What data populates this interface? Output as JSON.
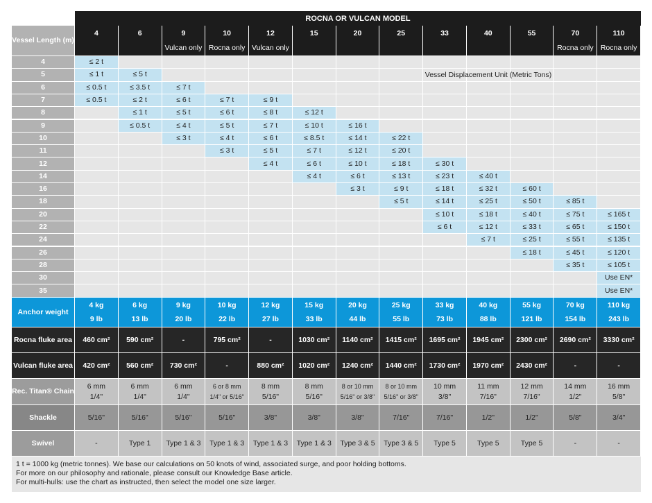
{
  "table": {
    "title": "ROCNA OR VULCAN MODEL",
    "corner_label": "Vessel Length (m)",
    "unit_note": "Vessel Displacement Unit (Metric Tons)",
    "models": [
      {
        "size": "4",
        "note": ""
      },
      {
        "size": "6",
        "note": ""
      },
      {
        "size": "9",
        "note": "Vulcan only"
      },
      {
        "size": "10",
        "note": "Rocna only"
      },
      {
        "size": "12",
        "note": "Vulcan only"
      },
      {
        "size": "15",
        "note": ""
      },
      {
        "size": "20",
        "note": ""
      },
      {
        "size": "25",
        "note": ""
      },
      {
        "size": "33",
        "note": ""
      },
      {
        "size": "40",
        "note": ""
      },
      {
        "size": "55",
        "note": ""
      },
      {
        "size": "70",
        "note": "Rocna only"
      },
      {
        "size": "110",
        "note": "Rocna only"
      }
    ],
    "rows": [
      {
        "length": "4",
        "cells": [
          "≤ 2 t",
          "",
          "",
          "",
          "",
          "",
          "",
          "",
          "",
          "",
          "",
          "",
          ""
        ]
      },
      {
        "length": "5",
        "cells": [
          "≤ 1 t",
          "≤ 5 t",
          "",
          "",
          "",
          "",
          "",
          "",
          "",
          "",
          "",
          "",
          ""
        ]
      },
      {
        "length": "6",
        "cells": [
          "≤ 0.5 t",
          "≤ 3.5 t",
          "≤ 7 t",
          "",
          "",
          "",
          "",
          "",
          "",
          "",
          "",
          "",
          ""
        ]
      },
      {
        "length": "7",
        "cells": [
          "≤ 0.5 t",
          "≤ 2 t",
          "≤ 6 t",
          "≤ 7 t",
          "≤ 9 t",
          "",
          "",
          "",
          "",
          "",
          "",
          "",
          ""
        ]
      },
      {
        "length": "8",
        "cells": [
          "",
          "≤ 1 t",
          "≤ 5 t",
          "≤ 6 t",
          "≤ 8 t",
          "≤ 12 t",
          "",
          "",
          "",
          "",
          "",
          "",
          ""
        ]
      },
      {
        "length": "9",
        "cells": [
          "",
          "≤ 0.5 t",
          "≤ 4 t",
          "≤ 5 t",
          "≤ 7 t",
          "≤ 10 t",
          "≤ 16 t",
          "",
          "",
          "",
          "",
          "",
          ""
        ]
      },
      {
        "length": "10",
        "cells": [
          "",
          "",
          "≤ 3 t",
          "≤ 4 t",
          "≤ 6 t",
          "≤ 8.5 t",
          "≤ 14 t",
          "≤ 22 t",
          "",
          "",
          "",
          "",
          ""
        ]
      },
      {
        "length": "11",
        "cells": [
          "",
          "",
          "",
          "≤ 3 t",
          "≤ 5 t",
          "≤ 7 t",
          "≤ 12 t",
          "≤ 20 t",
          "",
          "",
          "",
          "",
          ""
        ]
      },
      {
        "length": "12",
        "cells": [
          "",
          "",
          "",
          "",
          "≤ 4 t",
          "≤ 6 t",
          "≤ 10 t",
          "≤ 18 t",
          "≤ 30 t",
          "",
          "",
          "",
          ""
        ]
      },
      {
        "length": "14",
        "cells": [
          "",
          "",
          "",
          "",
          "",
          "≤ 4 t",
          "≤ 6 t",
          "≤ 13 t",
          "≤ 23 t",
          "≤ 40 t",
          "",
          "",
          ""
        ]
      },
      {
        "length": "16",
        "cells": [
          "",
          "",
          "",
          "",
          "",
          "",
          "≤ 3 t",
          "≤ 9 t",
          "≤ 18 t",
          "≤ 32 t",
          "≤ 60 t",
          "",
          ""
        ]
      },
      {
        "length": "18",
        "cells": [
          "",
          "",
          "",
          "",
          "",
          "",
          "",
          "≤ 5 t",
          "≤ 14 t",
          "≤ 25 t",
          "≤ 50 t",
          "≤ 85 t",
          ""
        ]
      },
      {
        "length": "20",
        "cells": [
          "",
          "",
          "",
          "",
          "",
          "",
          "",
          "",
          "≤ 10 t",
          "≤ 18 t",
          "≤ 40 t",
          "≤ 75 t",
          "≤ 165 t"
        ]
      },
      {
        "length": "22",
        "cells": [
          "",
          "",
          "",
          "",
          "",
          "",
          "",
          "",
          "≤ 6 t",
          "≤ 12 t",
          "≤ 33 t",
          "≤ 65 t",
          "≤ 150 t"
        ]
      },
      {
        "length": "24",
        "cells": [
          "",
          "",
          "",
          "",
          "",
          "",
          "",
          "",
          "",
          "≤ 7 t",
          "≤ 25 t",
          "≤ 55 t",
          "≤ 135 t"
        ]
      },
      {
        "length": "26",
        "cells": [
          "",
          "",
          "",
          "",
          "",
          "",
          "",
          "",
          "",
          "",
          "≤ 18 t",
          "≤ 45 t",
          "≤ 120 t"
        ]
      },
      {
        "length": "28",
        "cells": [
          "",
          "",
          "",
          "",
          "",
          "",
          "",
          "",
          "",
          "",
          "",
          "≤ 35 t",
          "≤ 105 t"
        ]
      },
      {
        "length": "30",
        "cells": [
          "",
          "",
          "",
          "",
          "",
          "",
          "",
          "",
          "",
          "",
          "",
          "",
          "Use EN*"
        ]
      },
      {
        "length": "35",
        "cells": [
          "",
          "",
          "",
          "",
          "",
          "",
          "",
          "",
          "",
          "",
          "",
          "",
          "Use EN*"
        ]
      }
    ],
    "anchor_weight": {
      "label": "Anchor weight",
      "kg": [
        "4 kg",
        "6 kg",
        "9 kg",
        "10 kg",
        "12 kg",
        "15 kg",
        "20 kg",
        "25 kg",
        "33 kg",
        "40 kg",
        "55 kg",
        "70 kg",
        "110 kg"
      ],
      "lb": [
        "9 lb",
        "13 lb",
        "20 lb",
        "22 lb",
        "27 lb",
        "33 lb",
        "44 lb",
        "55 lb",
        "73 lb",
        "88 lb",
        "121 lb",
        "154 lb",
        "243 lb"
      ]
    },
    "rocna_fluke": {
      "label": "Rocna fluke area",
      "values": [
        "460 cm²",
        "590 cm²",
        "-",
        "795 cm²",
        "-",
        "1030 cm²",
        "1140 cm²",
        "1415 cm²",
        "1695 cm²",
        "1945 cm²",
        "2300 cm²",
        "2690 cm²",
        "3330 cm²"
      ]
    },
    "vulcan_fluke": {
      "label": "Vulcan fluke area",
      "values": [
        "420 cm²",
        "560 cm²",
        "730 cm²",
        "-",
        "880 cm²",
        "1020 cm²",
        "1240 cm²",
        "1440 cm²",
        "1730 cm²",
        "1970 cm²",
        "2430 cm²",
        "-",
        "-"
      ]
    },
    "chain": {
      "label": "Rec. Titan® Chain",
      "mm": [
        "6 mm",
        "6 mm",
        "6 mm",
        "6 or 8 mm",
        "8 mm",
        "8 mm",
        "8 or 10 mm",
        "8 or 10 mm",
        "10 mm",
        "11 mm",
        "12 mm",
        "14 mm",
        "16 mm"
      ],
      "inch": [
        "1/4\"",
        "1/4\"",
        "1/4\"",
        "1/4\" or 5/16\"",
        "5/16\"",
        "5/16\"",
        "5/16\" or 3/8\"",
        "5/16\" or 3/8\"",
        "3/8\"",
        "7/16\"",
        "7/16\"",
        "1/2\"",
        "5/8\""
      ]
    },
    "shackle": {
      "label": "Shackle",
      "values": [
        "5/16\"",
        "5/16\"",
        "5/16\"",
        "5/16\"",
        "3/8\"",
        "3/8\"",
        "3/8\"",
        "7/16\"",
        "7/16\"",
        "1/2\"",
        "1/2\"",
        "5/8\"",
        "3/4\""
      ]
    },
    "swivel": {
      "label": "Swivel",
      "values": [
        "-",
        "Type 1",
        "Type 1 & 3",
        "Type 1 & 3",
        "Type 1 & 3",
        "Type 1 & 3",
        "Type 3 & 5",
        "Type 3 & 5",
        "Type 5",
        "Type 5",
        "Type 5",
        "-",
        "-"
      ]
    },
    "footer": [
      "1 t = 1000 kg (metric tonnes). We base our calculations on 50 knots of wind, associated surge, and poor holding bottoms.",
      "For more on our philosophy and rationale, please consult our Knowledge Base article.",
      "For multi-hulls: use the chart as instructed, then select the model one size larger."
    ]
  }
}
